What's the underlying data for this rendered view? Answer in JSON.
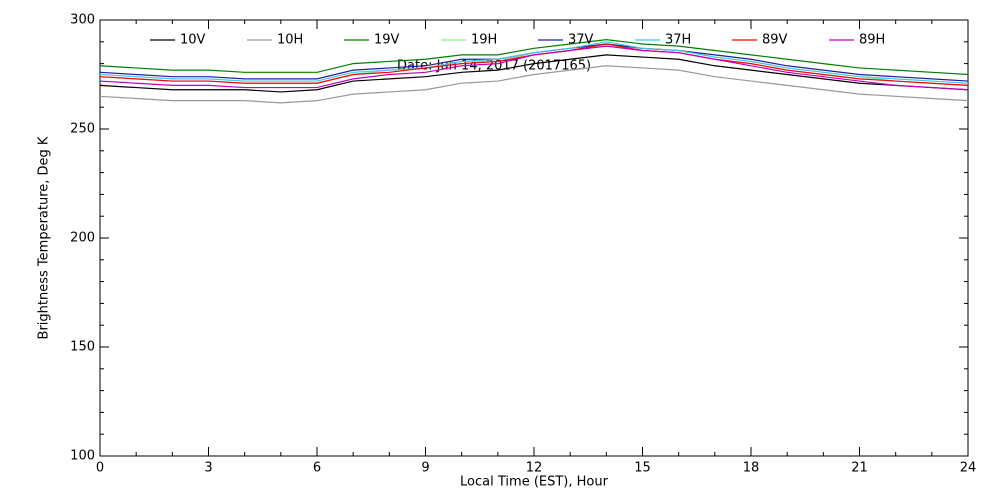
{
  "chart_data": {
    "type": "line",
    "title": "Date: Jun 14, 2017 (2017165)",
    "xlabel": "Local Time (EST), Hour",
    "ylabel": "Brightness Temperature, Deg K",
    "x": [
      0,
      1,
      2,
      3,
      4,
      5,
      6,
      7,
      8,
      9,
      10,
      11,
      12,
      13,
      14,
      15,
      16,
      17,
      18,
      19,
      20,
      21,
      22,
      23,
      24
    ],
    "xlim": [
      0,
      24
    ],
    "xticks": [
      0,
      3,
      6,
      9,
      12,
      15,
      18,
      21,
      24
    ],
    "xminorticks": [
      1,
      2,
      4,
      5,
      7,
      8,
      10,
      11,
      13,
      14,
      16,
      17,
      19,
      20,
      22,
      23
    ],
    "ylim": [
      100,
      300
    ],
    "yticks": [
      100,
      150,
      200,
      250,
      300
    ],
    "yminorticks": [
      110,
      120,
      130,
      140,
      160,
      170,
      180,
      190,
      210,
      220,
      230,
      240,
      260,
      270,
      280,
      290
    ],
    "series": [
      {
        "name": "10V",
        "color": "#000000",
        "values": [
          270,
          269,
          268,
          268,
          268,
          267,
          268,
          272,
          273,
          274,
          276,
          277,
          280,
          282,
          284,
          283,
          282,
          279,
          277,
          275,
          273,
          271,
          270,
          269,
          268
        ]
      },
      {
        "name": "10H",
        "color": "#999999",
        "values": [
          265,
          264,
          263,
          263,
          263,
          262,
          263,
          266,
          267,
          268,
          271,
          272,
          275,
          277,
          279,
          278,
          277,
          274,
          272,
          270,
          268,
          266,
          265,
          264,
          263
        ]
      },
      {
        "name": "19V",
        "color": "#008000",
        "values": [
          279,
          278,
          277,
          277,
          276,
          276,
          276,
          280,
          281,
          282,
          284,
          284,
          287,
          289,
          291,
          289,
          288,
          286,
          284,
          282,
          280,
          278,
          277,
          276,
          275
        ]
      },
      {
        "name": "19H",
        "color": "#90ee90",
        "values": [
          274,
          273,
          272,
          272,
          271,
          271,
          271,
          275,
          277,
          278,
          281,
          281,
          285,
          287,
          289,
          287,
          286,
          283,
          281,
          278,
          276,
          274,
          272,
          271,
          270
        ]
      },
      {
        "name": "37V",
        "color": "#2020a0",
        "values": [
          276,
          275,
          274,
          274,
          273,
          273,
          273,
          277,
          278,
          279,
          282,
          282,
          285,
          287,
          289,
          287,
          286,
          284,
          282,
          279,
          277,
          275,
          274,
          273,
          272
        ]
      },
      {
        "name": "37H",
        "color": "#40c8e8",
        "values": [
          275,
          274,
          273,
          273,
          272,
          272,
          272,
          276,
          277,
          278,
          281,
          282,
          285,
          287,
          290,
          287,
          286,
          283,
          281,
          278,
          276,
          274,
          273,
          272,
          271
        ]
      },
      {
        "name": "89V",
        "color": "#ff0000",
        "values": [
          274,
          273,
          272,
          272,
          271,
          271,
          271,
          275,
          276,
          278,
          280,
          281,
          284,
          286,
          289,
          286,
          285,
          282,
          280,
          277,
          275,
          273,
          272,
          271,
          270
        ]
      },
      {
        "name": "89H",
        "color": "#c000c0",
        "values": [
          272,
          271,
          270,
          270,
          269,
          269,
          269,
          273,
          275,
          276,
          279,
          280,
          284,
          286,
          288,
          286,
          285,
          282,
          279,
          276,
          274,
          272,
          270,
          269,
          268
        ]
      }
    ]
  }
}
